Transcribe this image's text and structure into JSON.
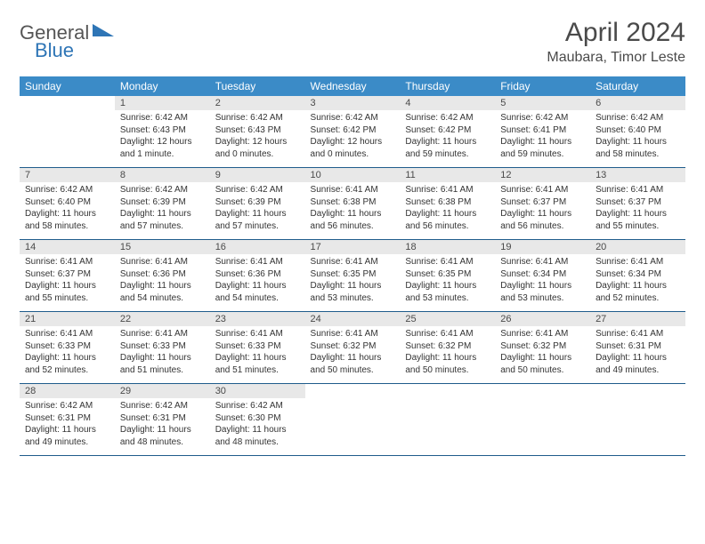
{
  "logo": {
    "textGeneral": "General",
    "textBlue": "Blue"
  },
  "title": "April 2024",
  "location": "Maubara, Timor Leste",
  "colors": {
    "headerBg": "#3b8bc7",
    "headerText": "#ffffff",
    "dayNumBg": "#e8e8e8",
    "borderBottom": "#1f5c8b",
    "logoBlue": "#2e75b6",
    "logoGray": "#555555",
    "bodyText": "#333333"
  },
  "dayNames": [
    "Sunday",
    "Monday",
    "Tuesday",
    "Wednesday",
    "Thursday",
    "Friday",
    "Saturday"
  ],
  "weeks": [
    [
      {
        "num": "",
        "sunrise": "",
        "sunset": "",
        "daylight": "",
        "empty": true
      },
      {
        "num": "1",
        "sunrise": "Sunrise: 6:42 AM",
        "sunset": "Sunset: 6:43 PM",
        "daylight": "Daylight: 12 hours and 1 minute."
      },
      {
        "num": "2",
        "sunrise": "Sunrise: 6:42 AM",
        "sunset": "Sunset: 6:43 PM",
        "daylight": "Daylight: 12 hours and 0 minutes."
      },
      {
        "num": "3",
        "sunrise": "Sunrise: 6:42 AM",
        "sunset": "Sunset: 6:42 PM",
        "daylight": "Daylight: 12 hours and 0 minutes."
      },
      {
        "num": "4",
        "sunrise": "Sunrise: 6:42 AM",
        "sunset": "Sunset: 6:42 PM",
        "daylight": "Daylight: 11 hours and 59 minutes."
      },
      {
        "num": "5",
        "sunrise": "Sunrise: 6:42 AM",
        "sunset": "Sunset: 6:41 PM",
        "daylight": "Daylight: 11 hours and 59 minutes."
      },
      {
        "num": "6",
        "sunrise": "Sunrise: 6:42 AM",
        "sunset": "Sunset: 6:40 PM",
        "daylight": "Daylight: 11 hours and 58 minutes."
      }
    ],
    [
      {
        "num": "7",
        "sunrise": "Sunrise: 6:42 AM",
        "sunset": "Sunset: 6:40 PM",
        "daylight": "Daylight: 11 hours and 58 minutes."
      },
      {
        "num": "8",
        "sunrise": "Sunrise: 6:42 AM",
        "sunset": "Sunset: 6:39 PM",
        "daylight": "Daylight: 11 hours and 57 minutes."
      },
      {
        "num": "9",
        "sunrise": "Sunrise: 6:42 AM",
        "sunset": "Sunset: 6:39 PM",
        "daylight": "Daylight: 11 hours and 57 minutes."
      },
      {
        "num": "10",
        "sunrise": "Sunrise: 6:41 AM",
        "sunset": "Sunset: 6:38 PM",
        "daylight": "Daylight: 11 hours and 56 minutes."
      },
      {
        "num": "11",
        "sunrise": "Sunrise: 6:41 AM",
        "sunset": "Sunset: 6:38 PM",
        "daylight": "Daylight: 11 hours and 56 minutes."
      },
      {
        "num": "12",
        "sunrise": "Sunrise: 6:41 AM",
        "sunset": "Sunset: 6:37 PM",
        "daylight": "Daylight: 11 hours and 56 minutes."
      },
      {
        "num": "13",
        "sunrise": "Sunrise: 6:41 AM",
        "sunset": "Sunset: 6:37 PM",
        "daylight": "Daylight: 11 hours and 55 minutes."
      }
    ],
    [
      {
        "num": "14",
        "sunrise": "Sunrise: 6:41 AM",
        "sunset": "Sunset: 6:37 PM",
        "daylight": "Daylight: 11 hours and 55 minutes."
      },
      {
        "num": "15",
        "sunrise": "Sunrise: 6:41 AM",
        "sunset": "Sunset: 6:36 PM",
        "daylight": "Daylight: 11 hours and 54 minutes."
      },
      {
        "num": "16",
        "sunrise": "Sunrise: 6:41 AM",
        "sunset": "Sunset: 6:36 PM",
        "daylight": "Daylight: 11 hours and 54 minutes."
      },
      {
        "num": "17",
        "sunrise": "Sunrise: 6:41 AM",
        "sunset": "Sunset: 6:35 PM",
        "daylight": "Daylight: 11 hours and 53 minutes."
      },
      {
        "num": "18",
        "sunrise": "Sunrise: 6:41 AM",
        "sunset": "Sunset: 6:35 PM",
        "daylight": "Daylight: 11 hours and 53 minutes."
      },
      {
        "num": "19",
        "sunrise": "Sunrise: 6:41 AM",
        "sunset": "Sunset: 6:34 PM",
        "daylight": "Daylight: 11 hours and 53 minutes."
      },
      {
        "num": "20",
        "sunrise": "Sunrise: 6:41 AM",
        "sunset": "Sunset: 6:34 PM",
        "daylight": "Daylight: 11 hours and 52 minutes."
      }
    ],
    [
      {
        "num": "21",
        "sunrise": "Sunrise: 6:41 AM",
        "sunset": "Sunset: 6:33 PM",
        "daylight": "Daylight: 11 hours and 52 minutes."
      },
      {
        "num": "22",
        "sunrise": "Sunrise: 6:41 AM",
        "sunset": "Sunset: 6:33 PM",
        "daylight": "Daylight: 11 hours and 51 minutes."
      },
      {
        "num": "23",
        "sunrise": "Sunrise: 6:41 AM",
        "sunset": "Sunset: 6:33 PM",
        "daylight": "Daylight: 11 hours and 51 minutes."
      },
      {
        "num": "24",
        "sunrise": "Sunrise: 6:41 AM",
        "sunset": "Sunset: 6:32 PM",
        "daylight": "Daylight: 11 hours and 50 minutes."
      },
      {
        "num": "25",
        "sunrise": "Sunrise: 6:41 AM",
        "sunset": "Sunset: 6:32 PM",
        "daylight": "Daylight: 11 hours and 50 minutes."
      },
      {
        "num": "26",
        "sunrise": "Sunrise: 6:41 AM",
        "sunset": "Sunset: 6:32 PM",
        "daylight": "Daylight: 11 hours and 50 minutes."
      },
      {
        "num": "27",
        "sunrise": "Sunrise: 6:41 AM",
        "sunset": "Sunset: 6:31 PM",
        "daylight": "Daylight: 11 hours and 49 minutes."
      }
    ],
    [
      {
        "num": "28",
        "sunrise": "Sunrise: 6:42 AM",
        "sunset": "Sunset: 6:31 PM",
        "daylight": "Daylight: 11 hours and 49 minutes."
      },
      {
        "num": "29",
        "sunrise": "Sunrise: 6:42 AM",
        "sunset": "Sunset: 6:31 PM",
        "daylight": "Daylight: 11 hours and 48 minutes."
      },
      {
        "num": "30",
        "sunrise": "Sunrise: 6:42 AM",
        "sunset": "Sunset: 6:30 PM",
        "daylight": "Daylight: 11 hours and 48 minutes."
      },
      {
        "num": "",
        "sunrise": "",
        "sunset": "",
        "daylight": "",
        "empty": true
      },
      {
        "num": "",
        "sunrise": "",
        "sunset": "",
        "daylight": "",
        "empty": true
      },
      {
        "num": "",
        "sunrise": "",
        "sunset": "",
        "daylight": "",
        "empty": true
      },
      {
        "num": "",
        "sunrise": "",
        "sunset": "",
        "daylight": "",
        "empty": true
      }
    ]
  ]
}
